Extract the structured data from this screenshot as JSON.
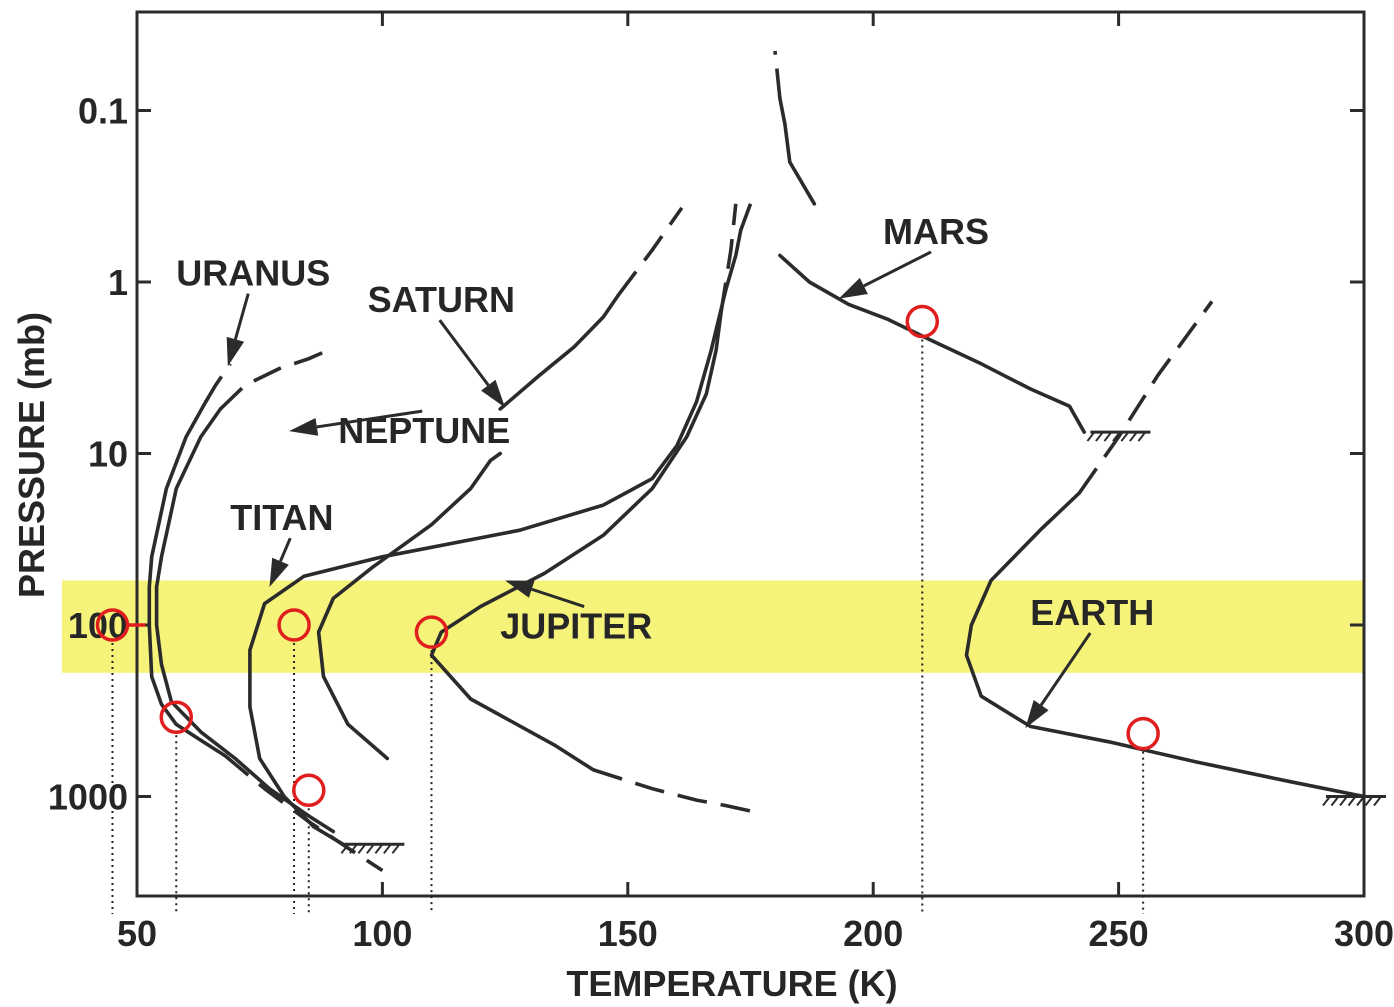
{
  "chart_data": {
    "type": "line",
    "title": "",
    "xlabel": "TEMPERATURE (K)",
    "ylabel": "PRESSURE (mb)",
    "xlim": [
      50,
      300
    ],
    "ylim": [
      0.03,
      6000
    ],
    "y_scale": "log",
    "y_reversed": true,
    "grid": false,
    "x_ticks": [
      50,
      100,
      150,
      200,
      250,
      300
    ],
    "x_tick_labels": [
      "50",
      "100",
      "150",
      "200",
      "250",
      "300"
    ],
    "y_ticks": [
      0.1,
      1,
      10,
      100,
      1000
    ],
    "y_tick_labels": [
      "0.1",
      "1",
      "10",
      "100",
      "1000"
    ],
    "highlight_band": {
      "color": "#f6f37a",
      "y_range": [
        55,
        190
      ]
    },
    "colors": {
      "curve": "#2b2b2b",
      "marker": "#e01e1e",
      "band": "#f6f37a"
    },
    "series": [
      {
        "name": "URANUS",
        "solid": [
          [
            52.5,
            60
          ],
          [
            53,
            40
          ],
          [
            56,
            16
          ],
          [
            60,
            8
          ],
          [
            64,
            5
          ]
        ],
        "solid_lower": [
          [
            52.5,
            60
          ],
          [
            52.5,
            100
          ],
          [
            53,
            200
          ],
          [
            55,
            290
          ],
          [
            58,
            380
          ],
          [
            63,
            470
          ],
          [
            68,
            580
          ]
        ],
        "dashed": [
          [
            64,
            5
          ],
          [
            66,
            4
          ],
          [
            69,
            3
          ]
        ],
        "dashed_lower": [
          [
            68,
            580
          ],
          [
            76,
            900
          ],
          [
            85,
            1400
          ],
          [
            93,
            2000
          ],
          [
            100,
            2700
          ]
        ]
      },
      {
        "name": "NEPTUNE",
        "solid": [
          [
            54,
            60
          ],
          [
            55,
            40
          ],
          [
            58,
            16
          ],
          [
            63,
            8
          ],
          [
            67,
            5.5
          ]
        ],
        "solid_lower": [
          [
            54,
            60
          ],
          [
            54,
            100
          ],
          [
            55,
            170
          ],
          [
            57,
            280
          ],
          [
            63,
            420
          ],
          [
            70,
            600
          ],
          [
            77,
            900
          ],
          [
            85,
            1300
          ],
          [
            90,
            1600
          ]
        ],
        "dashed": [
          [
            67,
            5.5
          ],
          [
            72,
            4
          ],
          [
            79,
            3.2
          ],
          [
            85,
            2.8
          ],
          [
            89,
            2.5
          ]
        ],
        "dashed_lower": []
      },
      {
        "name": "TITAN",
        "solid": [
          [
            92,
            1900
          ],
          [
            86,
            1500
          ],
          [
            80,
            1000
          ],
          [
            75,
            600
          ],
          [
            73,
            300
          ],
          [
            73,
            140
          ],
          [
            76,
            75
          ],
          [
            84,
            52
          ],
          [
            100,
            40
          ],
          [
            128,
            28
          ],
          [
            145,
            20
          ],
          [
            155,
            14
          ],
          [
            160,
            9
          ],
          [
            164,
            5
          ],
          [
            167,
            2.5
          ],
          [
            170,
            1.1
          ],
          [
            172,
            0.7
          ],
          [
            173,
            0.5
          ]
        ],
        "dashed": [
          [
            173,
            0.5
          ],
          [
            175,
            0.35
          ]
        ]
      },
      {
        "name": "SATURN",
        "solid": [
          [
            101,
            600
          ],
          [
            93,
            380
          ],
          [
            88,
            200
          ],
          [
            87,
            110
          ],
          [
            90,
            70
          ],
          [
            98,
            46
          ],
          [
            110,
            26
          ],
          [
            118,
            16
          ],
          [
            122,
            11
          ],
          [
            124,
            10
          ]
        ],
        "dashed": [],
        "solid_upper": [
          [
            124,
            5.5
          ],
          [
            132,
            3.5
          ],
          [
            139,
            2.4
          ],
          [
            145,
            1.6
          ],
          [
            148,
            1.2
          ]
        ],
        "dashed_upper": [
          [
            148,
            1.2
          ],
          [
            155,
            0.65
          ],
          [
            161,
            0.37
          ]
        ]
      },
      {
        "name": "JUPITER",
        "solid": [
          [
            143,
            700
          ],
          [
            135,
            500
          ],
          [
            118,
            270
          ],
          [
            110,
            150
          ],
          [
            112,
            110
          ],
          [
            120,
            78
          ],
          [
            133,
            50
          ],
          [
            145,
            30
          ],
          [
            155,
            16
          ],
          [
            162,
            8
          ],
          [
            166,
            4.5
          ],
          [
            168,
            2.5
          ],
          [
            169,
            1.5
          ]
        ],
        "dashed": [
          [
            169,
            1.5
          ],
          [
            171,
            0.65
          ],
          [
            172,
            0.35
          ]
        ],
        "dashed_lower": [
          [
            143,
            700
          ],
          [
            155,
            900
          ],
          [
            164,
            1050
          ],
          [
            170,
            1130
          ],
          [
            177,
            1250
          ]
        ]
      },
      {
        "name": "MARS",
        "solid": [
          [
            188,
            0.35
          ],
          [
            183,
            0.2
          ],
          [
            182,
            0.12
          ],
          [
            181,
            0.085
          ]
        ],
        "solid_lower": [
          [
            181,
            0.7
          ],
          [
            187,
            1.0
          ],
          [
            195,
            1.35
          ],
          [
            203,
            1.65
          ],
          [
            212,
            2.2
          ],
          [
            222,
            3.0
          ],
          [
            232,
            4.2
          ],
          [
            240,
            5.3
          ],
          [
            243,
            7.5
          ]
        ],
        "dashed": [
          [
            181,
            0.085
          ],
          [
            180,
            0.045
          ]
        ],
        "dashed_lower": []
      },
      {
        "name": "EARTH",
        "solid": [
          [
            300,
            1000
          ],
          [
            285,
            820
          ],
          [
            266,
            630
          ],
          [
            248,
            480
          ],
          [
            232,
            390
          ],
          [
            222,
            260
          ],
          [
            219,
            150
          ],
          [
            220,
            100
          ],
          [
            224,
            55
          ],
          [
            234,
            28
          ],
          [
            242,
            17
          ]
        ],
        "dashed": [
          [
            242,
            17
          ],
          [
            250,
            8
          ],
          [
            258,
            3.5
          ],
          [
            269,
            1.3
          ]
        ]
      }
    ],
    "surface_markers": [
      {
        "series": "TITAN",
        "x": 100,
        "y": 1900
      },
      {
        "series": "MARS",
        "x": 252,
        "y": 7.5
      },
      {
        "series": "EARTH",
        "x": 300,
        "y": 1000
      }
    ],
    "annotations": [
      {
        "text": "URANUS",
        "x": 58,
        "y": 1.05,
        "arrow_to": [
          68.5,
          3.1
        ]
      },
      {
        "text": "NEPTUNE",
        "x": 91,
        "y": 8.7,
        "arrow_to": [
          81,
          7.4
        ]
      },
      {
        "text": "SATURN",
        "x": 97,
        "y": 1.5,
        "arrow_to": [
          125,
          5.4
        ]
      },
      {
        "text": "TITAN",
        "x": 69,
        "y": 28,
        "arrow_to": [
          77,
          60
        ]
      },
      {
        "text": "JUPITER",
        "x": 124,
        "y": 120,
        "arrow_to": [
          125,
          55
        ]
      },
      {
        "text": "MARS",
        "x": 202,
        "y": 0.6,
        "arrow_to": [
          193,
          1.25
        ]
      },
      {
        "text": "EARTH",
        "x": 232,
        "y": 100,
        "arrow_to": [
          231,
          400
        ]
      }
    ],
    "circles": [
      {
        "x": 45,
        "y": 100,
        "drop": [
          45,
          100
        ],
        "tick": true
      },
      {
        "x": 58,
        "y": 345,
        "drop": [
          58,
          345
        ]
      },
      {
        "x": 82,
        "y": 100,
        "drop": [
          82,
          100
        ]
      },
      {
        "x": 85,
        "y": 920,
        "drop": [
          85,
          920
        ]
      },
      {
        "x": 110,
        "y": 110,
        "drop": [
          110,
          110
        ]
      },
      {
        "x": 210,
        "y": 1.7,
        "drop": [
          210,
          1.7
        ]
      },
      {
        "x": 255,
        "y": 430,
        "drop": [
          255,
          430
        ]
      }
    ]
  }
}
